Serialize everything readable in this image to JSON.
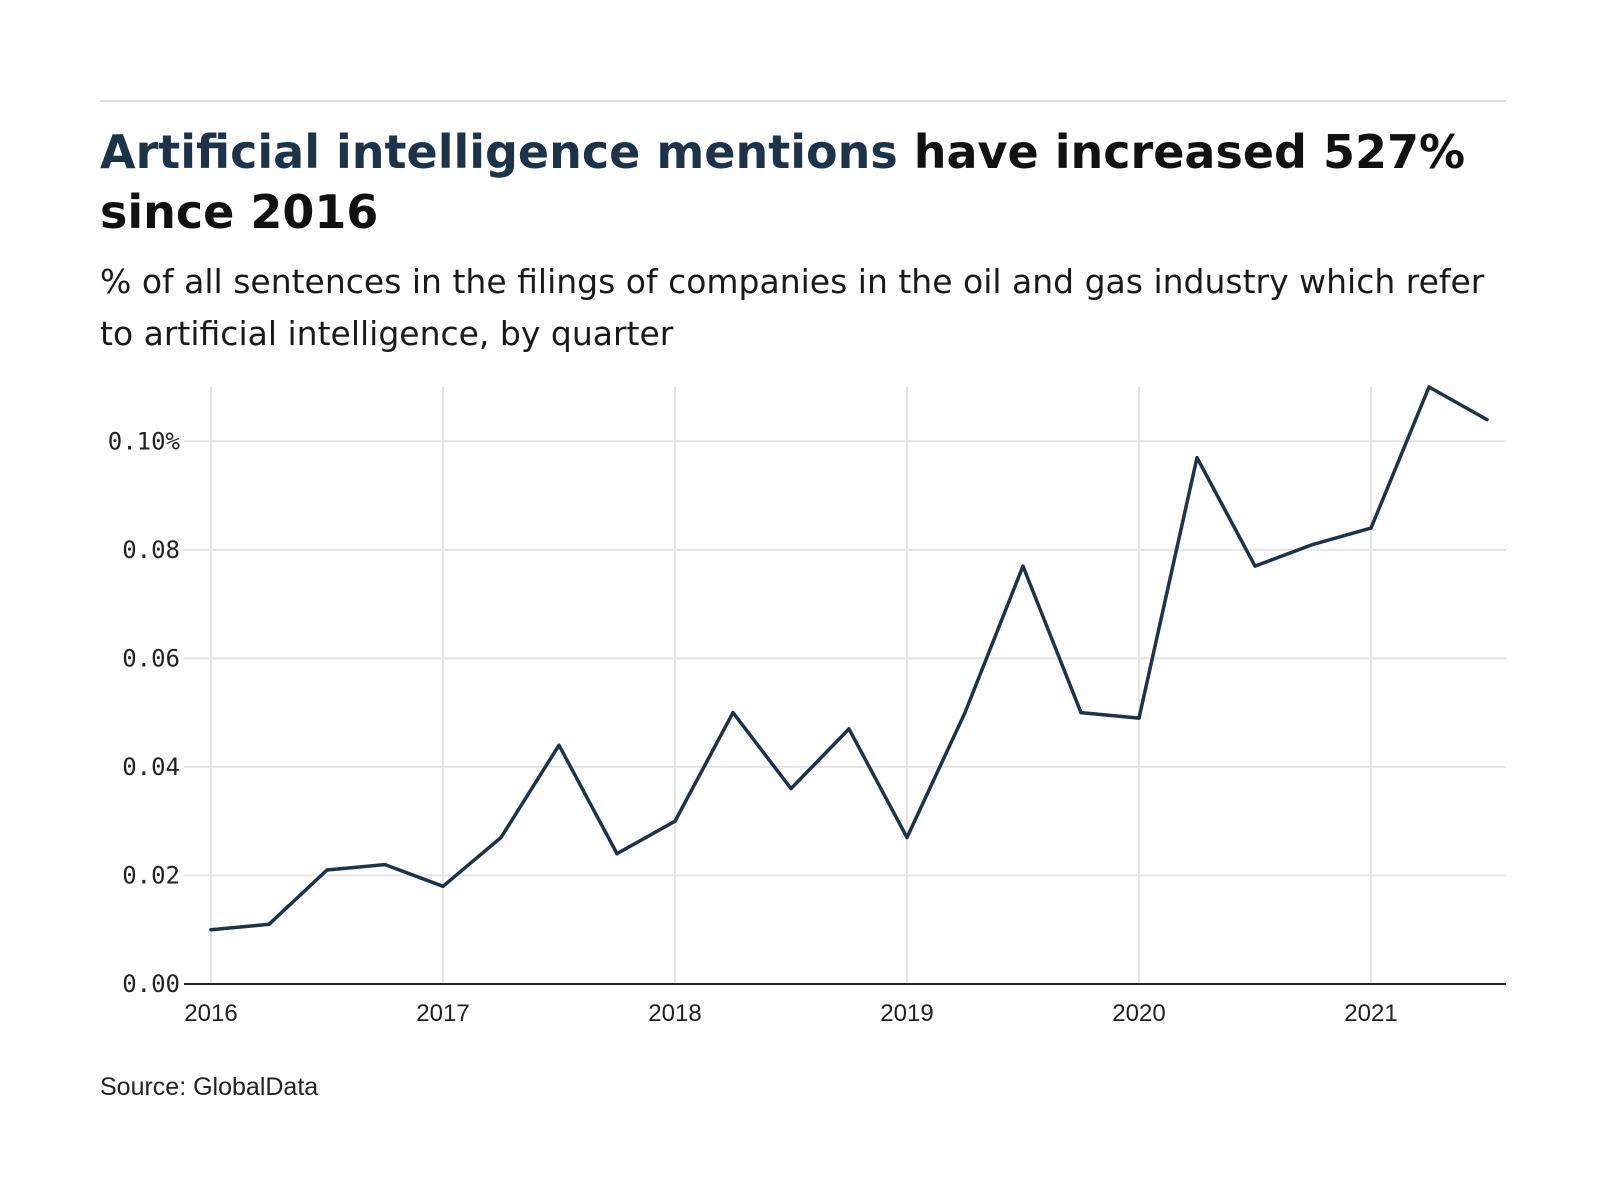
{
  "header": {
    "title_highlight": "Artificial intelligence mentions",
    "title_rest": " have increased 527% since 2016",
    "subtitle": "% of all sentences in the filings of companies in the oil and gas industry which refer to artificial intelligence, by quarter"
  },
  "footer": {
    "source": "Source: GlobalData"
  },
  "colors": {
    "line": "#1d3349",
    "grid": "#e5e5e5",
    "axis": "#222222",
    "highlight": "#1d3349"
  },
  "chart_data": {
    "type": "line",
    "title": "Artificial intelligence mentions have increased 527% since 2016",
    "subtitle": "% of all sentences in the filings of companies in the oil and gas industry which refer to artificial intelligence, by quarter",
    "xlabel": "",
    "ylabel": "",
    "grid": true,
    "x": [
      2016.0,
      2016.25,
      2016.5,
      2016.75,
      2017.0,
      2017.25,
      2017.5,
      2017.75,
      2018.0,
      2018.25,
      2018.5,
      2018.75,
      2019.0,
      2019.25,
      2019.5,
      2019.75,
      2020.0,
      2020.25,
      2020.5,
      2020.75,
      2021.0,
      2021.25,
      2021.5
    ],
    "series": [
      {
        "name": "Artificial intelligence",
        "values": [
          0.01,
          0.011,
          0.021,
          0.022,
          0.018,
          0.027,
          0.044,
          0.024,
          0.03,
          0.05,
          0.036,
          0.047,
          0.027,
          0.05,
          0.077,
          0.05,
          0.049,
          0.097,
          0.077,
          0.081,
          0.084,
          0.11,
          0.104
        ]
      }
    ],
    "xlim": [
      2016.0,
      2021.58
    ],
    "ylim": [
      0.0,
      0.11
    ],
    "x_ticks": [
      {
        "value": 2016,
        "label": "2016"
      },
      {
        "value": 2017,
        "label": "2017"
      },
      {
        "value": 2018,
        "label": "2018"
      },
      {
        "value": 2019,
        "label": "2019"
      },
      {
        "value": 2020,
        "label": "2020"
      },
      {
        "value": 2021,
        "label": "2021"
      }
    ],
    "y_ticks": [
      {
        "value": 0.0,
        "label": "0.00"
      },
      {
        "value": 0.02,
        "label": "0.02"
      },
      {
        "value": 0.04,
        "label": "0.04"
      },
      {
        "value": 0.06,
        "label": "0.06"
      },
      {
        "value": 0.08,
        "label": "0.08"
      },
      {
        "value": 0.1,
        "label": "0.10%"
      }
    ],
    "source": "Source: GlobalData"
  }
}
